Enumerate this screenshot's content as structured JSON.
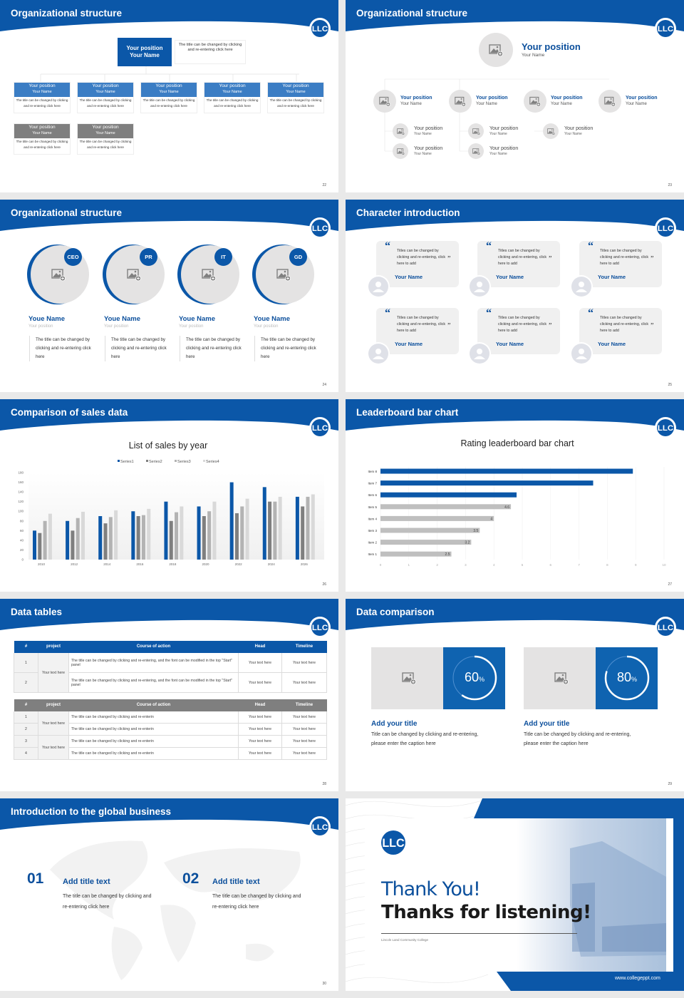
{
  "colors": {
    "brand": "#0b57a8",
    "brand_light": "#3b7dc4",
    "gray_box": "#7f7f7f",
    "placeholder": "#e4e3e3"
  },
  "logo_text": "LLC",
  "slides": [
    {
      "number": "22",
      "title": "Organizational structure",
      "top": {
        "position": "Your position",
        "name": "Your Name",
        "desc": "The title can be changed by clicking and re-entering click here"
      },
      "boxes": [
        {
          "position": "Your position",
          "name": "Your Name",
          "desc": "The title can be changed by clicking and re-entering click here",
          "variant": "blue"
        },
        {
          "position": "Your position",
          "name": "Your Name",
          "desc": "The title can be changed by clicking and re-entering click here",
          "variant": "blue"
        },
        {
          "position": "Your position",
          "name": "Your Name",
          "desc": "The title can be changed by clicking and re-entering click here",
          "variant": "blue"
        },
        {
          "position": "Your position",
          "name": "Your Name",
          "desc": "The title can be changed by clicking and re-entering click here",
          "variant": "blue"
        },
        {
          "position": "Your position",
          "name": "Your Name",
          "desc": "The title can be changed by clicking and re-entering click here",
          "variant": "blue"
        },
        {
          "position": "Your position",
          "name": "Your Name",
          "desc": "The title can be changed by clicking and re-entering click here",
          "variant": "gray"
        },
        {
          "position": "Your position",
          "name": "Your Name",
          "desc": "The title can be changed by clicking and re-entering click here",
          "variant": "gray"
        }
      ]
    },
    {
      "number": "23",
      "title": "Organizational structure",
      "top": {
        "position": "Your position",
        "name": "Your Name"
      },
      "members": [
        {
          "position": "Your position",
          "name": "Your Name",
          "subs": [
            {
              "position": "Your position",
              "name": "Your Name"
            },
            {
              "position": "Your position",
              "name": "Your Name"
            }
          ]
        },
        {
          "position": "Your position",
          "name": "Your Name",
          "subs": [
            {
              "position": "Your position",
              "name": "Your Name"
            },
            {
              "position": "Your position",
              "name": "Your Name"
            }
          ]
        },
        {
          "position": "Your position",
          "name": "Your Name",
          "subs": [
            {
              "position": "Your position",
              "name": "Your Name"
            }
          ]
        },
        {
          "position": "Your position",
          "name": "Your Name",
          "subs": []
        }
      ]
    },
    {
      "number": "24",
      "title": "Organizational structure",
      "people": [
        {
          "badge": "CEO",
          "name": "Youe Name",
          "position": "Your position",
          "desc": "The title can be changed by clicking and re-entering click here"
        },
        {
          "badge": "PR",
          "name": "Youe Name",
          "position": "Your position",
          "desc": "The title can be changed by clicking and re-entering click here"
        },
        {
          "badge": "IT",
          "name": "Youe Name",
          "position": "Your position",
          "desc": "The title can be changed by clicking and re-entering click here"
        },
        {
          "badge": "GD",
          "name": "Youe Name",
          "position": "Your position",
          "desc": "The title can be changed by clicking and re-entering click here"
        }
      ]
    },
    {
      "number": "25",
      "title": "Character introduction",
      "cards": [
        {
          "quote": "Titles can be changed by clicking and re-entering, click here to add",
          "name": "Your Name"
        },
        {
          "quote": "Titles can be changed by clicking and re-entering, click here to add",
          "name": "Your Name"
        },
        {
          "quote": "Titles can be changed by clicking and re-entering, click here to add",
          "name": "Your Name"
        },
        {
          "quote": "Titles can be changed by clicking and re-entering, click here to add",
          "name": "Your Name"
        },
        {
          "quote": "Titles can be changed by clicking and re-entering, click here to add",
          "name": "Your Name"
        },
        {
          "quote": "Titles can be changed by clicking and re-entering, click here to add",
          "name": "Your Name"
        }
      ]
    },
    {
      "number": "26",
      "title": "Comparison of sales data"
    },
    {
      "number": "27",
      "title": "Leaderboard bar chart"
    },
    {
      "number": "28",
      "title": "Data tables",
      "tables": [
        {
          "header_color": "#0b57a8",
          "columns": [
            "#",
            "project",
            "Course of action",
            "Head",
            "Timeline"
          ],
          "groups": [
            {
              "project": "Your text here",
              "rows": [
                {
                  "num": "1",
                  "action": "The title can be changed by clicking and re-entering, and the font can be modified in the top \"Start\" panel",
                  "head": "Your text here",
                  "timeline": "Your text here"
                },
                {
                  "num": "2",
                  "action": "The title can be changed by clicking and re-entering, and the font can be modified in the top \"Start\" panel",
                  "head": "Your text here",
                  "timeline": "Your text here"
                }
              ]
            }
          ]
        },
        {
          "header_color": "#7f7f7f",
          "columns": [
            "#",
            "project",
            "Course of action",
            "Head",
            "Timeline"
          ],
          "groups": [
            {
              "project": "Your text here",
              "rows": [
                {
                  "num": "1",
                  "action": "The title can be changed by clicking and re-enterin",
                  "head": "Your text here",
                  "timeline": "Your text here"
                },
                {
                  "num": "2",
                  "action": "The title can be changed by clicking and re-enterin",
                  "head": "Your text here",
                  "timeline": "Your text here"
                }
              ]
            },
            {
              "project": "Your text here",
              "rows": [
                {
                  "num": "3",
                  "action": "The title can be changed by clicking and re-enterin",
                  "head": "Your text here",
                  "timeline": "Your text here"
                },
                {
                  "num": "4",
                  "action": "The title can be changed by clicking and re-enterin",
                  "head": "Your text here",
                  "timeline": "Your text here"
                }
              ]
            }
          ]
        }
      ]
    },
    {
      "number": "29",
      "title": "Data comparison",
      "items": [
        {
          "percent": 60,
          "value": "60",
          "unit": "%",
          "title": "Add your title",
          "desc": "Title can be changed by clicking and re-entering, please enter the caption here"
        },
        {
          "percent": 80,
          "value": "80",
          "unit": "%",
          "title": "Add your title",
          "desc": "Title can be changed by clicking and re-entering, please enter the caption here"
        }
      ]
    },
    {
      "number": "30",
      "title": "Introduction to the global business",
      "items": [
        {
          "num": "01",
          "title": "Add title text",
          "desc": "The title can be changed by clicking and re-entering click here"
        },
        {
          "num": "02",
          "title": "Add title text",
          "desc": "The title can be changed by clicking and re-entering click here"
        }
      ]
    },
    {
      "thanks": "Thank You!",
      "subtitle": "Thanks for listening!",
      "college": "Lincoln Land Community College",
      "url": "www.collegeppt.com"
    }
  ],
  "chart_data": [
    {
      "type": "bar",
      "title": "List of sales by year",
      "categories": [
        "2010",
        "2012",
        "2014",
        "2016",
        "2018",
        "2020",
        "2022",
        "2024",
        "2026"
      ],
      "series": [
        {
          "name": "Series1",
          "color": "#0b57a8",
          "values": [
            60,
            80,
            90,
            100,
            120,
            110,
            160,
            150,
            130
          ]
        },
        {
          "name": "Series2",
          "color": "#7f7f7f",
          "values": [
            55,
            60,
            75,
            90,
            80,
            90,
            96,
            120,
            110
          ]
        },
        {
          "name": "Series3",
          "color": "#b3b3b3",
          "values": [
            80,
            86,
            88,
            92,
            98,
            100,
            110,
            120,
            130
          ]
        },
        {
          "name": "Series4",
          "color": "#d9d9d9",
          "values": [
            95,
            99,
            102,
            105,
            110,
            120,
            126,
            130,
            135
          ]
        }
      ],
      "ylim": [
        0,
        180
      ],
      "yticks": [
        0,
        20,
        40,
        60,
        80,
        100,
        120,
        140,
        160,
        180
      ],
      "legend": "top",
      "grid": false
    },
    {
      "type": "bar",
      "orientation": "horizontal",
      "title": "Rating leaderboard bar chart",
      "categories": [
        "Item 1",
        "Item 2",
        "Item 3",
        "Item 4",
        "Item 5",
        "Item 6",
        "Item 7",
        "Item 8"
      ],
      "values": [
        2.5,
        3.2,
        3.5,
        4,
        4.6,
        4.8,
        7.5,
        8.9
      ],
      "colors": [
        "#bfbfbf",
        "#bfbfbf",
        "#bfbfbf",
        "#bfbfbf",
        "#bfbfbf",
        "#0b57a8",
        "#0b57a8",
        "#0b57a8"
      ],
      "xlim": [
        0,
        10
      ],
      "xticks": [
        0,
        1,
        2,
        3,
        4,
        5,
        6,
        7,
        8,
        9,
        10
      ],
      "grid": true
    }
  ]
}
